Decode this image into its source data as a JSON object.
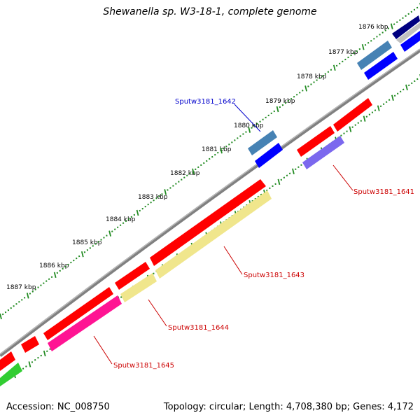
{
  "title": "Shewanella sp. W3-18-1, complete genome",
  "footer": {
    "accession": "Accession: NC_008750",
    "summary": "Topology: circular; Length: 4,708,380 bp; Genes: 4,172"
  },
  "scale_labels": [
    "1876 kbp",
    "1877 kbp",
    "1878 kbp",
    "1879 kbp",
    "1880 kbp",
    "1881 kbp",
    "1882 kbp",
    "1883 kbp",
    "1884 kbp",
    "1885 kbp",
    "1886 kbp",
    "1887 kbp"
  ],
  "gene_labels": [
    {
      "name": "Sputw3181_1642",
      "color": "#0000cc"
    },
    {
      "name": "Sputw3181_1641",
      "color": "#cc0000"
    },
    {
      "name": "Sputw3181_1643",
      "color": "#cc0000"
    },
    {
      "name": "Sputw3181_1644",
      "color": "#cc0000"
    },
    {
      "name": "Sputw3181_1645",
      "color": "#cc0000"
    }
  ],
  "colors": {
    "backbone": "#808080",
    "tick": "#228b22",
    "red": "#ff0000",
    "blue": "#0000ff",
    "steelblue": "#4682b4",
    "navy": "#000080",
    "slate": "#7b68ee",
    "magenta": "#ff1493",
    "khaki": "#f0e68c",
    "green": "#32cd32",
    "silver": "#c0c0c0"
  }
}
